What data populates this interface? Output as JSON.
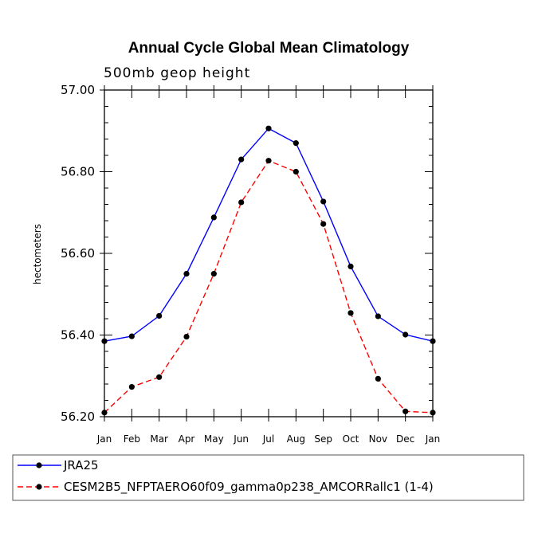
{
  "chart_data": {
    "type": "line",
    "title": "Annual Cycle Global Mean Climatology",
    "subtitle": "500mb geop height",
    "ylabel": "hectometers",
    "xlabel": "",
    "ylim": [
      56.2,
      57.0
    ],
    "yticks": [
      "56.20",
      "56.40",
      "56.60",
      "56.80",
      "57.00"
    ],
    "categories": [
      "Jan",
      "Feb",
      "Mar",
      "Apr",
      "May",
      "Jun",
      "Jul",
      "Aug",
      "Sep",
      "Oct",
      "Nov",
      "Dec",
      "Jan"
    ],
    "series": [
      {
        "name": "JRA25",
        "color": "#0000ff",
        "dash": "solid",
        "values": [
          56.385,
          56.397,
          56.447,
          56.55,
          56.688,
          56.83,
          56.906,
          56.87,
          56.727,
          56.568,
          56.446,
          56.401,
          56.385
        ]
      },
      {
        "name": "CESM2B5_NFPTAERO60f09_gamma0p238_AMCORRallc1 (1-4)",
        "color": "#ff0000",
        "dash": "dashed",
        "values": [
          56.21,
          56.273,
          56.297,
          56.396,
          56.55,
          56.725,
          56.827,
          56.8,
          56.672,
          56.454,
          56.293,
          56.213,
          56.21
        ]
      }
    ],
    "legend_position": "bottom-left",
    "grid": false
  }
}
